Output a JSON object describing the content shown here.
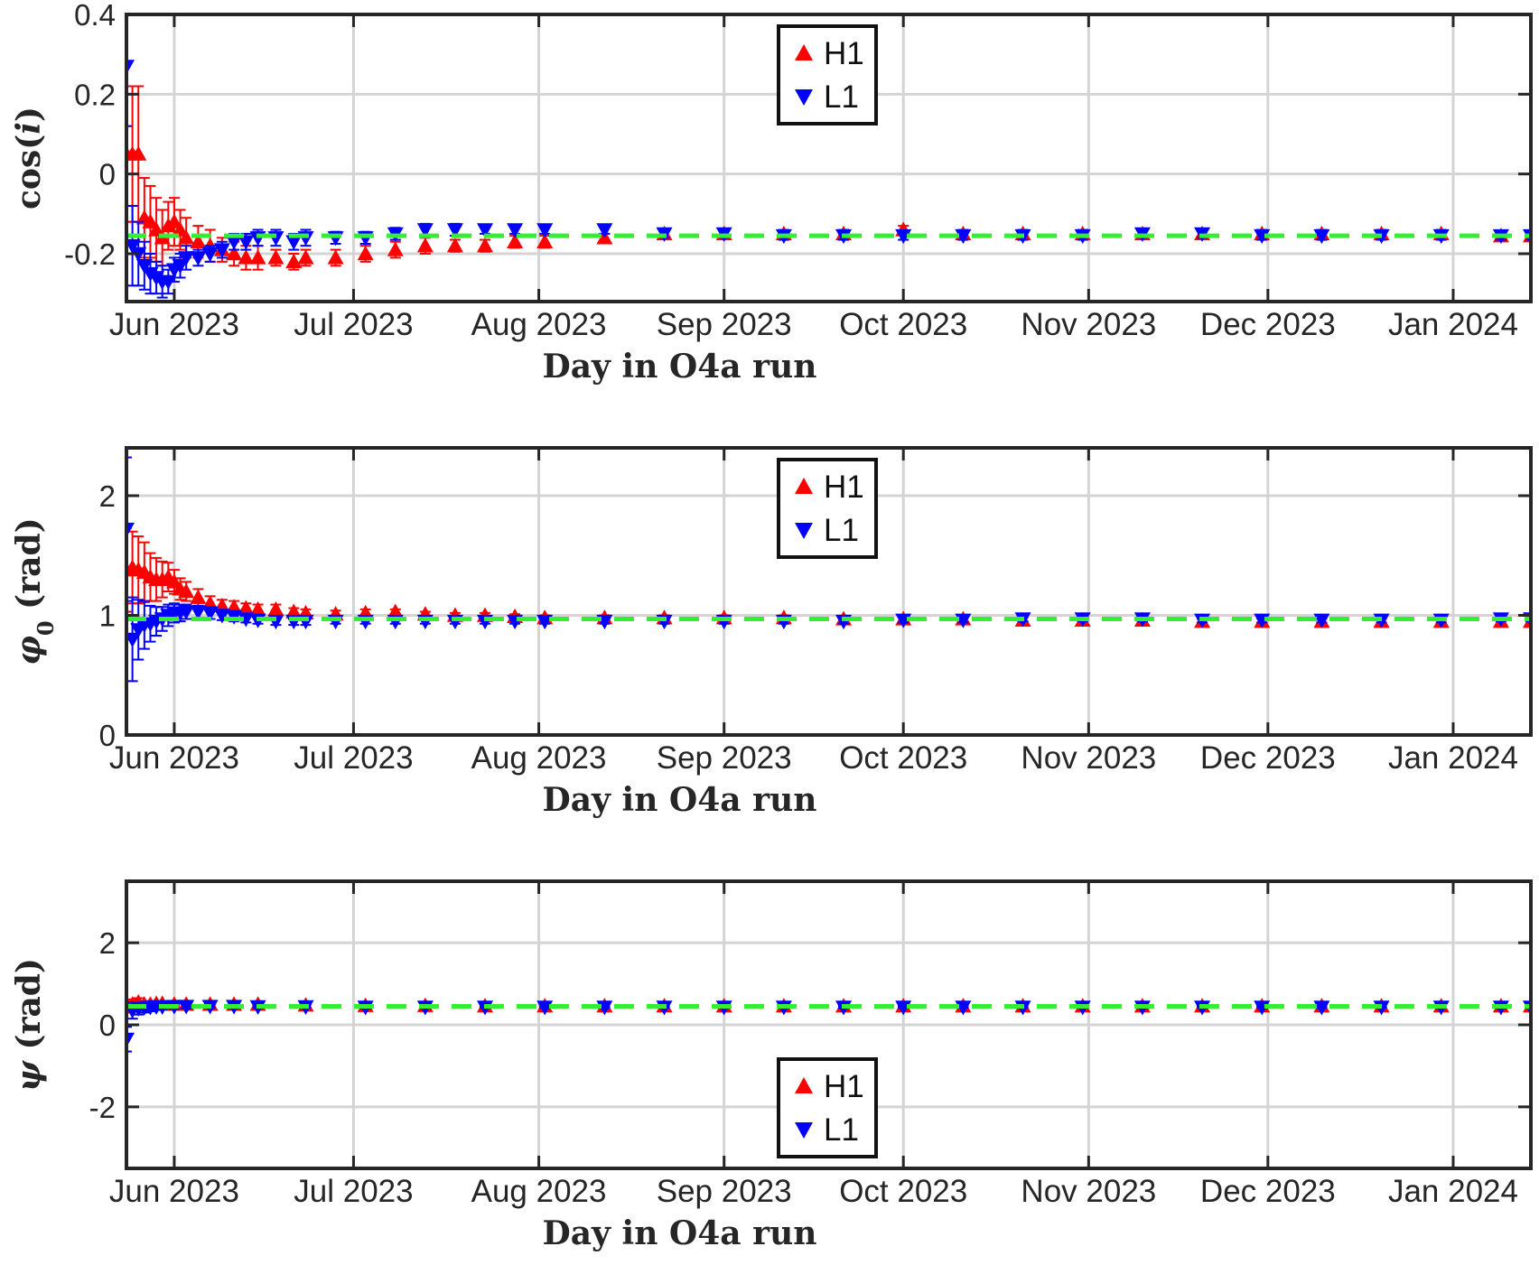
{
  "chart_data": [
    {
      "type": "scatter",
      "panel": "top",
      "title": "",
      "xlabel": "Day in O4a run",
      "ylabel": "cos(i)",
      "ylabel_prefix": "cos(",
      "ylabel_var": "i",
      "ylabel_suffix": ")",
      "xlim": [
        0,
        235
      ],
      "ylim": [
        -0.32,
        0.4
      ],
      "yticks": [
        -0.2,
        0,
        0.2,
        0.4
      ],
      "ytick_labels": [
        "-0.2",
        "0",
        "0.2",
        "0.4"
      ],
      "xticks": [
        8,
        38,
        69,
        100,
        130,
        161,
        191,
        222
      ],
      "xtick_labels": [
        "Jun 2023",
        "Jul 2023",
        "Aug 2023",
        "Sep 2023",
        "Oct 2023",
        "Nov 2023",
        "Dec 2023",
        "Jan 2024"
      ],
      "reference_value": -0.155,
      "legend_position": "top-center",
      "series": [
        {
          "name": "H1",
          "marker": "triangle-up",
          "color": "#ff0000",
          "x": [
            0,
            1,
            2,
            3,
            4,
            5,
            6,
            7,
            8,
            9,
            10,
            12,
            14,
            16,
            18,
            20,
            22,
            25,
            28,
            30,
            35,
            40,
            45,
            50,
            55,
            60,
            65,
            70,
            80,
            90,
            100,
            110,
            120,
            130,
            140,
            150,
            160,
            170,
            180,
            190,
            200,
            210,
            220,
            230,
            235
          ],
          "y": [
            0.05,
            0.05,
            0.05,
            -0.11,
            -0.12,
            -0.14,
            -0.16,
            -0.13,
            -0.12,
            -0.14,
            -0.16,
            -0.17,
            -0.18,
            -0.19,
            -0.2,
            -0.21,
            -0.21,
            -0.21,
            -0.22,
            -0.21,
            -0.21,
            -0.2,
            -0.19,
            -0.18,
            -0.18,
            -0.18,
            -0.17,
            -0.17,
            -0.16,
            -0.15,
            -0.15,
            -0.15,
            -0.15,
            -0.14,
            -0.15,
            -0.15,
            -0.15,
            -0.15,
            -0.15,
            -0.15,
            -0.15,
            -0.15,
            -0.15,
            -0.155,
            -0.155
          ],
          "err": [
            0.17,
            0.17,
            0.17,
            0.1,
            0.09,
            0.08,
            0.07,
            0.06,
            0.06,
            0.05,
            0.05,
            0.04,
            0.04,
            0.03,
            0.03,
            0.03,
            0.03,
            0.02,
            0.02,
            0.02,
            0.02,
            0.02,
            0.02,
            0.02,
            0.015,
            0.015,
            0.015,
            0.015,
            0.01,
            0.01,
            0.01,
            0.01,
            0.01,
            0.01,
            0.01,
            0.01,
            0.01,
            0.01,
            0.01,
            0.01,
            0.01,
            0.01,
            0.01,
            0.01,
            0.01
          ]
        },
        {
          "name": "L1",
          "marker": "triangle-down",
          "color": "#0000ff",
          "x": [
            0,
            1,
            2,
            3,
            4,
            5,
            6,
            7,
            8,
            9,
            10,
            12,
            14,
            16,
            18,
            20,
            22,
            25,
            28,
            30,
            35,
            40,
            45,
            50,
            55,
            60,
            65,
            70,
            80,
            90,
            100,
            110,
            120,
            130,
            140,
            150,
            160,
            170,
            180,
            190,
            200,
            210,
            220,
            230,
            235
          ],
          "y": [
            0.27,
            -0.18,
            -0.2,
            -0.23,
            -0.25,
            -0.26,
            -0.27,
            -0.27,
            -0.24,
            -0.23,
            -0.21,
            -0.21,
            -0.2,
            -0.19,
            -0.17,
            -0.17,
            -0.16,
            -0.16,
            -0.17,
            -0.16,
            -0.16,
            -0.16,
            -0.15,
            -0.14,
            -0.14,
            -0.14,
            -0.14,
            -0.14,
            -0.14,
            -0.15,
            -0.15,
            -0.155,
            -0.155,
            -0.155,
            -0.155,
            -0.155,
            -0.155,
            -0.15,
            -0.15,
            -0.155,
            -0.155,
            -0.155,
            -0.155,
            -0.155,
            -0.155
          ],
          "err": [
            0.15,
            0.1,
            0.08,
            0.06,
            0.05,
            0.04,
            0.04,
            0.03,
            0.03,
            0.03,
            0.03,
            0.02,
            0.02,
            0.02,
            0.02,
            0.02,
            0.02,
            0.02,
            0.02,
            0.02,
            0.015,
            0.015,
            0.015,
            0.015,
            0.015,
            0.01,
            0.01,
            0.01,
            0.01,
            0.01,
            0.01,
            0.01,
            0.01,
            0.01,
            0.01,
            0.01,
            0.01,
            0.01,
            0.01,
            0.01,
            0.01,
            0.01,
            0.01,
            0.01,
            0.01
          ]
        }
      ]
    },
    {
      "type": "scatter",
      "panel": "middle",
      "title": "",
      "xlabel": "Day in O4a run",
      "ylabel": "φ0 (rad)",
      "ylabel_var": "φ",
      "ylabel_sub": "0",
      "ylabel_suffix": " (rad)",
      "xlim": [
        0,
        235
      ],
      "ylim": [
        0,
        2.4
      ],
      "yticks": [
        0,
        1,
        2
      ],
      "ytick_labels": [
        "0",
        "1",
        "2"
      ],
      "xticks": [
        8,
        38,
        69,
        100,
        130,
        161,
        191,
        222
      ],
      "xtick_labels": [
        "Jun 2023",
        "Jul 2023",
        "Aug 2023",
        "Sep 2023",
        "Oct 2023",
        "Nov 2023",
        "Dec 2023",
        "Jan 2024"
      ],
      "reference_value": 0.97,
      "legend_position": "top-center",
      "series": [
        {
          "name": "H1",
          "marker": "triangle-up",
          "color": "#ff0000",
          "x": [
            0,
            1,
            2,
            3,
            4,
            5,
            6,
            7,
            8,
            9,
            10,
            12,
            14,
            16,
            18,
            20,
            22,
            25,
            28,
            30,
            35,
            40,
            45,
            50,
            55,
            60,
            65,
            70,
            80,
            90,
            100,
            110,
            120,
            130,
            140,
            150,
            160,
            170,
            180,
            190,
            200,
            210,
            220,
            230,
            235
          ],
          "y": [
            1.38,
            1.4,
            1.38,
            1.36,
            1.32,
            1.3,
            1.3,
            1.32,
            1.28,
            1.22,
            1.2,
            1.15,
            1.1,
            1.08,
            1.07,
            1.06,
            1.05,
            1.05,
            1.03,
            1.02,
            1.01,
            1.02,
            1.03,
            1.01,
            1.0,
            1.0,
            0.99,
            0.98,
            0.98,
            0.98,
            0.98,
            0.98,
            0.97,
            0.97,
            0.97,
            0.96,
            0.96,
            0.96,
            0.95,
            0.95,
            0.95,
            0.95,
            0.95,
            0.95,
            0.95
          ],
          "err": [
            0.35,
            0.3,
            0.28,
            0.25,
            0.2,
            0.18,
            0.15,
            0.12,
            0.1,
            0.09,
            0.08,
            0.07,
            0.06,
            0.05,
            0.05,
            0.04,
            0.04,
            0.04,
            0.03,
            0.03,
            0.03,
            0.03,
            0.02,
            0.02,
            0.02,
            0.02,
            0.02,
            0.02,
            0.02,
            0.02,
            0.02,
            0.02,
            0.02,
            0.02,
            0.02,
            0.02,
            0.02,
            0.02,
            0.02,
            0.02,
            0.02,
            0.02,
            0.02,
            0.02,
            0.02
          ]
        },
        {
          "name": "L1",
          "marker": "triangle-down",
          "color": "#0000ff",
          "x": [
            0,
            1,
            2,
            3,
            4,
            5,
            6,
            7,
            8,
            9,
            10,
            12,
            14,
            16,
            18,
            20,
            22,
            25,
            28,
            30,
            35,
            40,
            45,
            50,
            55,
            60,
            65,
            70,
            80,
            90,
            100,
            110,
            120,
            130,
            140,
            150,
            160,
            170,
            180,
            190,
            200,
            210,
            220,
            230,
            235
          ],
          "y": [
            1.72,
            0.8,
            0.88,
            0.92,
            0.93,
            0.95,
            0.97,
            1.0,
            1.02,
            1.02,
            1.03,
            1.03,
            1.02,
            1.0,
            0.99,
            0.97,
            0.96,
            0.95,
            0.95,
            0.95,
            0.95,
            0.95,
            0.95,
            0.95,
            0.95,
            0.95,
            0.95,
            0.95,
            0.95,
            0.95,
            0.95,
            0.95,
            0.95,
            0.96,
            0.96,
            0.97,
            0.97,
            0.97,
            0.96,
            0.96,
            0.96,
            0.96,
            0.96,
            0.97,
            0.97
          ],
          "err": [
            0.6,
            0.35,
            0.25,
            0.2,
            0.15,
            0.12,
            0.1,
            0.09,
            0.08,
            0.07,
            0.06,
            0.05,
            0.05,
            0.04,
            0.04,
            0.03,
            0.03,
            0.03,
            0.03,
            0.03,
            0.02,
            0.02,
            0.02,
            0.02,
            0.02,
            0.02,
            0.02,
            0.02,
            0.02,
            0.02,
            0.02,
            0.02,
            0.02,
            0.02,
            0.02,
            0.02,
            0.02,
            0.02,
            0.02,
            0.02,
            0.02,
            0.02,
            0.02,
            0.02,
            0.02
          ]
        }
      ]
    },
    {
      "type": "scatter",
      "panel": "bottom",
      "title": "",
      "xlabel": "Day in O4a run",
      "ylabel": "ψ (rad)",
      "ylabel_var": "ψ",
      "ylabel_suffix": " (rad)",
      "xlim": [
        0,
        235
      ],
      "ylim": [
        -3.5,
        3.5
      ],
      "yticks": [
        -2,
        0,
        2
      ],
      "ytick_labels": [
        "-2",
        "0",
        "2"
      ],
      "xticks": [
        8,
        38,
        69,
        100,
        130,
        161,
        191,
        222
      ],
      "xtick_labels": [
        "Jun 2023",
        "Jul 2023",
        "Aug 2023",
        "Sep 2023",
        "Oct 2023",
        "Nov 2023",
        "Dec 2023",
        "Jan 2024"
      ],
      "reference_value": 0.45,
      "legend_position": "bottom-center",
      "series": [
        {
          "name": "H1",
          "marker": "triangle-up",
          "color": "#ff0000",
          "x": [
            0,
            1,
            2,
            3,
            4,
            5,
            6,
            8,
            10,
            14,
            18,
            22,
            30,
            40,
            50,
            60,
            70,
            80,
            90,
            100,
            110,
            120,
            130,
            140,
            150,
            160,
            170,
            180,
            190,
            200,
            210,
            220,
            230,
            235
          ],
          "y": [
            0.45,
            0.5,
            0.55,
            0.5,
            0.5,
            0.52,
            0.52,
            0.5,
            0.5,
            0.5,
            0.5,
            0.5,
            0.48,
            0.47,
            0.47,
            0.46,
            0.46,
            0.46,
            0.46,
            0.46,
            0.46,
            0.46,
            0.46,
            0.46,
            0.46,
            0.46,
            0.46,
            0.46,
            0.46,
            0.46,
            0.46,
            0.46,
            0.46,
            0.46
          ],
          "err": [
            0.15,
            0.12,
            0.1,
            0.08,
            0.07,
            0.06,
            0.05,
            0.05,
            0.04,
            0.04,
            0.03,
            0.03,
            0.03,
            0.02,
            0.02,
            0.02,
            0.02,
            0.02,
            0.02,
            0.02,
            0.02,
            0.02,
            0.02,
            0.02,
            0.02,
            0.02,
            0.02,
            0.02,
            0.02,
            0.02,
            0.02,
            0.02,
            0.02,
            0.02
          ]
        },
        {
          "name": "L1",
          "marker": "triangle-down",
          "color": "#0000ff",
          "x": [
            0,
            1,
            2,
            3,
            4,
            5,
            6,
            8,
            10,
            14,
            18,
            22,
            30,
            40,
            50,
            60,
            70,
            80,
            90,
            100,
            110,
            120,
            130,
            140,
            150,
            160,
            170,
            180,
            190,
            200,
            210,
            220,
            230,
            235
          ],
          "y": [
            -0.35,
            0.35,
            0.4,
            0.42,
            0.43,
            0.44,
            0.44,
            0.45,
            0.45,
            0.45,
            0.45,
            0.44,
            0.44,
            0.43,
            0.43,
            0.43,
            0.43,
            0.43,
            0.43,
            0.43,
            0.43,
            0.43,
            0.43,
            0.43,
            0.43,
            0.43,
            0.43,
            0.43,
            0.43,
            0.43,
            0.43,
            0.43,
            0.43,
            0.43
          ],
          "err": [
            0.3,
            0.2,
            0.15,
            0.12,
            0.1,
            0.08,
            0.07,
            0.06,
            0.05,
            0.04,
            0.04,
            0.03,
            0.03,
            0.03,
            0.02,
            0.02,
            0.02,
            0.02,
            0.02,
            0.02,
            0.02,
            0.02,
            0.02,
            0.02,
            0.02,
            0.02,
            0.02,
            0.02,
            0.02,
            0.02,
            0.02,
            0.02,
            0.02,
            0.02
          ]
        }
      ]
    }
  ]
}
